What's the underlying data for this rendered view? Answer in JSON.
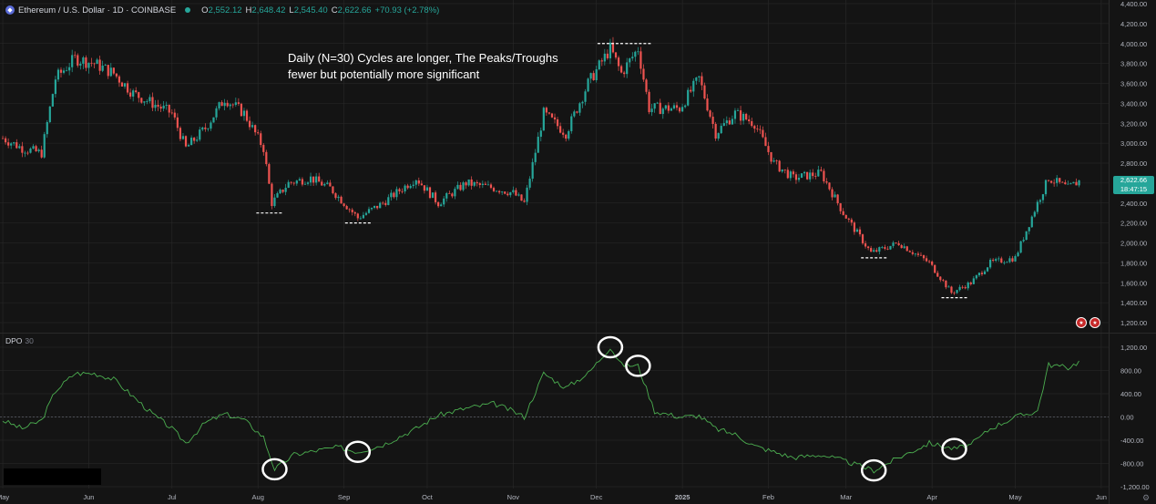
{
  "header": {
    "symbol": "Ethereum / U.S. Dollar · 1D · COINBASE",
    "open_label": "O",
    "open": "2,552.12",
    "high_label": "H",
    "high": "2,648.42",
    "low_label": "L",
    "low": "2,545.40",
    "close_label": "C",
    "close": "2,622.66",
    "change": "+70.93 (+2.78%)"
  },
  "annotation": {
    "line1": "Daily (N=30) Cycles are longer, The Peaks/Troughs",
    "line2": "fewer but potentially more significant"
  },
  "indicator": {
    "name": "DPO",
    "param": "30"
  },
  "price_tag": {
    "price": "2,622.66",
    "countdown": "18:47:15"
  },
  "colors": {
    "background": "#141414",
    "up": "#26a69a",
    "down": "#ef5350",
    "dpo_line": "#4caf50",
    "grid": "#2a2a2a",
    "circle": "#ffffff"
  },
  "icons": [
    "ethereum-logo-icon",
    "market-open-dot-icon",
    "flag-icon",
    "settings-icon"
  ],
  "chart_data": [
    {
      "type": "candlestick",
      "title": "Ethereum / U.S. Dollar · 1D · COINBASE",
      "y_axis_ticks": [
        "4,400.00",
        "4,200.00",
        "4,000.00",
        "3,800.00",
        "3,600.00",
        "3,400.00",
        "3,200.00",
        "3,000.00",
        "2,800.00",
        "2,600.00",
        "2,400.00",
        "2,200.00",
        "2,000.00",
        "1,800.00",
        "1,600.00",
        "1,400.00",
        "1,200.00"
      ],
      "ylim": [
        1100,
        4420
      ],
      "x_axis_ticks": [
        "May",
        "Jun",
        "Jul",
        "Aug",
        "Sep",
        "Oct",
        "Nov",
        "Dec",
        "2025",
        "Feb",
        "Mar",
        "Apr",
        "May",
        "Jun"
      ],
      "close_path": [
        [
          "2024-05-01",
          3050
        ],
        [
          "2024-05-08",
          2950
        ],
        [
          "2024-05-15",
          2900
        ],
        [
          "2024-05-20",
          3650
        ],
        [
          "2024-05-27",
          3850
        ],
        [
          "2024-06-03",
          3800
        ],
        [
          "2024-06-10",
          3700
        ],
        [
          "2024-06-17",
          3500
        ],
        [
          "2024-06-24",
          3400
        ],
        [
          "2024-07-01",
          3300
        ],
        [
          "2024-07-06",
          2950
        ],
        [
          "2024-07-13",
          3150
        ],
        [
          "2024-07-20",
          3450
        ],
        [
          "2024-07-27",
          3300
        ],
        [
          "2024-08-03",
          2950
        ],
        [
          "2024-08-06",
          2400
        ],
        [
          "2024-08-12",
          2600
        ],
        [
          "2024-08-20",
          2650
        ],
        [
          "2024-08-27",
          2550
        ],
        [
          "2024-09-06",
          2250
        ],
        [
          "2024-09-15",
          2400
        ],
        [
          "2024-09-27",
          2650
        ],
        [
          "2024-10-05",
          2400
        ],
        [
          "2024-10-15",
          2600
        ],
        [
          "2024-10-25",
          2550
        ],
        [
          "2024-11-01",
          2500
        ],
        [
          "2024-11-05",
          2400
        ],
        [
          "2024-11-12",
          3300
        ],
        [
          "2024-11-20",
          3100
        ],
        [
          "2024-11-28",
          3600
        ],
        [
          "2024-12-06",
          3950
        ],
        [
          "2024-12-10",
          3700
        ],
        [
          "2024-12-16",
          3950
        ],
        [
          "2024-12-20",
          3350
        ],
        [
          "2024-12-31",
          3350
        ],
        [
          "2025-01-07",
          3650
        ],
        [
          "2025-01-13",
          3100
        ],
        [
          "2025-01-20",
          3300
        ],
        [
          "2025-01-27",
          3200
        ],
        [
          "2025-02-03",
          2800
        ],
        [
          "2025-02-10",
          2650
        ],
        [
          "2025-02-20",
          2700
        ],
        [
          "2025-02-28",
          2300
        ],
        [
          "2025-03-10",
          1900
        ],
        [
          "2025-03-20",
          2000
        ],
        [
          "2025-03-31",
          1800
        ],
        [
          "2025-04-08",
          1500
        ],
        [
          "2025-04-15",
          1600
        ],
        [
          "2025-04-22",
          1800
        ],
        [
          "2025-05-01",
          1850
        ],
        [
          "2025-05-09",
          2400
        ],
        [
          "2025-05-13",
          2650
        ],
        [
          "2025-05-20",
          2550
        ],
        [
          "2025-05-24",
          2620
        ]
      ],
      "marked_levels": [
        {
          "date": "2024-08-05",
          "value": 2300
        },
        {
          "date": "2024-09-06",
          "value": 2200
        },
        {
          "date": "2024-12-06",
          "value": 4000
        },
        {
          "date": "2024-12-16",
          "value": 4000
        },
        {
          "date": "2025-03-11",
          "value": 1850
        },
        {
          "date": "2025-04-09",
          "value": 1450
        }
      ],
      "last_price": 2622.66
    },
    {
      "type": "line",
      "title": "DPO 30",
      "y_axis_ticks": [
        "1,200.00",
        "800.00",
        "400.00",
        "0.00",
        "-400.00",
        "-800.00",
        "-1,200.00"
      ],
      "ylim": [
        -1200,
        1250
      ],
      "zero_line": true,
      "series": [
        {
          "name": "DPO 30",
          "points": [
            [
              "2024-05-01",
              -60
            ],
            [
              "2024-05-08",
              -200
            ],
            [
              "2024-05-15",
              -60
            ],
            [
              "2024-05-20",
              450
            ],
            [
              "2024-05-27",
              750
            ],
            [
              "2024-06-03",
              750
            ],
            [
              "2024-06-10",
              650
            ],
            [
              "2024-06-17",
              350
            ],
            [
              "2024-06-24",
              50
            ],
            [
              "2024-07-01",
              -200
            ],
            [
              "2024-07-06",
              -450
            ],
            [
              "2024-07-13",
              -100
            ],
            [
              "2024-07-20",
              50
            ],
            [
              "2024-07-27",
              -50
            ],
            [
              "2024-08-03",
              -350
            ],
            [
              "2024-08-07",
              -900
            ],
            [
              "2024-08-14",
              -650
            ],
            [
              "2024-08-22",
              -580
            ],
            [
              "2024-08-30",
              -520
            ],
            [
              "2024-09-06",
              -600
            ],
            [
              "2024-09-15",
              -480
            ],
            [
              "2024-09-27",
              -200
            ],
            [
              "2024-10-05",
              30
            ],
            [
              "2024-10-15",
              150
            ],
            [
              "2024-10-25",
              230
            ],
            [
              "2024-11-01",
              100
            ],
            [
              "2024-11-05",
              0
            ],
            [
              "2024-11-12",
              750
            ],
            [
              "2024-11-20",
              500
            ],
            [
              "2024-11-28",
              750
            ],
            [
              "2024-12-06",
              1200
            ],
            [
              "2024-12-10",
              900
            ],
            [
              "2024-12-16",
              880
            ],
            [
              "2024-12-22",
              100
            ],
            [
              "2024-12-31",
              0
            ],
            [
              "2025-01-07",
              20
            ],
            [
              "2025-01-13",
              -200
            ],
            [
              "2025-01-20",
              -300
            ],
            [
              "2025-01-27",
              -500
            ],
            [
              "2025-02-03",
              -600
            ],
            [
              "2025-02-10",
              -700
            ],
            [
              "2025-02-20",
              -650
            ],
            [
              "2025-02-28",
              -750
            ],
            [
              "2025-03-11",
              -920
            ],
            [
              "2025-03-20",
              -700
            ],
            [
              "2025-03-31",
              -450
            ],
            [
              "2025-04-09",
              -550
            ],
            [
              "2025-04-15",
              -480
            ],
            [
              "2025-04-22",
              -200
            ],
            [
              "2025-05-01",
              0
            ],
            [
              "2025-05-09",
              100
            ],
            [
              "2025-05-13",
              900
            ],
            [
              "2025-05-20",
              850
            ],
            [
              "2025-05-24",
              950
            ]
          ]
        }
      ],
      "circled_points": [
        [
          "2024-08-07",
          -900
        ],
        [
          "2024-09-06",
          -600
        ],
        [
          "2024-12-06",
          1200
        ],
        [
          "2024-12-16",
          880
        ],
        [
          "2025-03-11",
          -920
        ],
        [
          "2025-04-09",
          -550
        ]
      ]
    }
  ]
}
